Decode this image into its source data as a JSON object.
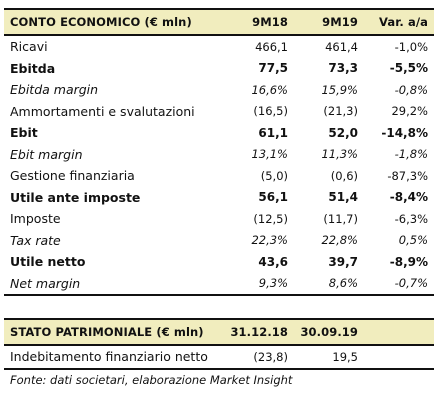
{
  "income_statement": {
    "headers": [
      "CONTO ECONOMICO (€ mln)",
      "9M18",
      "9M19",
      "Var. a/a"
    ],
    "rows": [
      {
        "label": "Ricavi",
        "v1": "466,1",
        "v2": "461,4",
        "v3": "-1,0%",
        "style": "normal"
      },
      {
        "label": "Ebitda",
        "v1": "77,5",
        "v2": "73,3",
        "v3": "-5,5%",
        "style": "bold"
      },
      {
        "label": "Ebitda margin",
        "v1": "16,6%",
        "v2": "15,9%",
        "v3": "-0,8%",
        "style": "italic"
      },
      {
        "label": "Ammortamenti e svalutazioni",
        "v1": "(16,5)",
        "v2": "(21,3)",
        "v3": "29,2%",
        "style": "normal"
      },
      {
        "label": "Ebit",
        "v1": "61,1",
        "v2": "52,0",
        "v3": "-14,8%",
        "style": "bold"
      },
      {
        "label": "Ebit margin",
        "v1": "13,1%",
        "v2": "11,3%",
        "v3": "-1,8%",
        "style": "italic"
      },
      {
        "label": "Gestione finanziaria",
        "v1": "(5,0)",
        "v2": "(0,6)",
        "v3": "-87,3%",
        "style": "normal"
      },
      {
        "label": "Utile ante imposte",
        "v1": "56,1",
        "v2": "51,4",
        "v3": "-8,4%",
        "style": "bold"
      },
      {
        "label": "Imposte",
        "v1": "(12,5)",
        "v2": "(11,7)",
        "v3": "-6,3%",
        "style": "normal"
      },
      {
        "label": "Tax rate",
        "v1": "22,3%",
        "v2": "22,8%",
        "v3": "0,5%",
        "style": "italic"
      },
      {
        "label": "Utile netto",
        "v1": "43,6",
        "v2": "39,7",
        "v3": "-8,9%",
        "style": "bold"
      },
      {
        "label": "Net margin",
        "v1": "9,3%",
        "v2": "8,6%",
        "v3": "-0,7%",
        "style": "italic"
      }
    ]
  },
  "balance_sheet": {
    "headers": [
      "STATO PATRIMONIALE (€ mln)",
      "31.12.18",
      "30.09.19",
      ""
    ],
    "rows": [
      {
        "label": "Indebitamento finanziario netto",
        "v1": "(23,8)",
        "v2": "19,5",
        "v3": "",
        "style": "normal"
      }
    ]
  },
  "footnote": "Fonte: dati societari, elaborazione Market Insight",
  "colors": {
    "header_bg": "#f1edbe",
    "rule": "#111111"
  }
}
